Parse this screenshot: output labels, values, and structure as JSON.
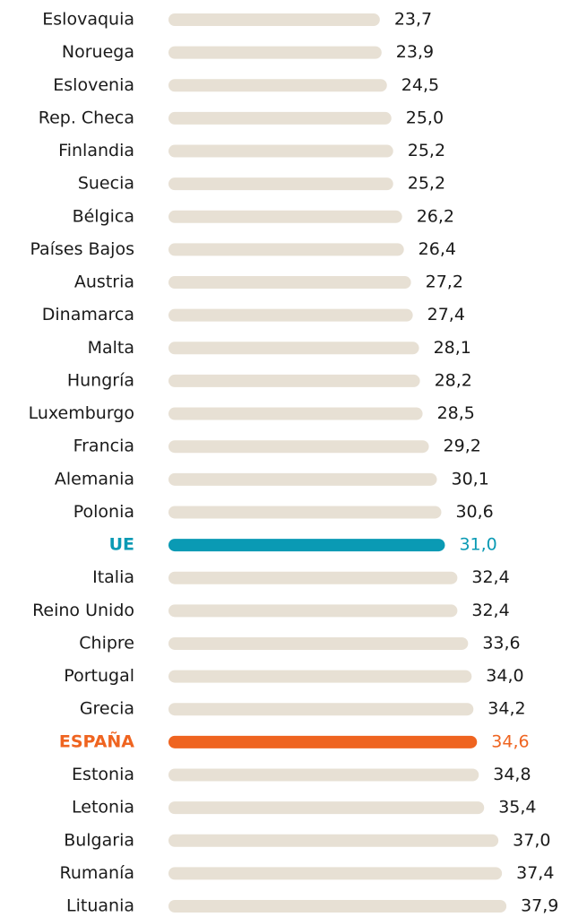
{
  "chart_data": {
    "type": "hbar",
    "categories": [
      "Eslovaquia",
      "Noruega",
      "Eslovenia",
      "Rep. Checa",
      "Finlandia",
      "Suecia",
      "Bélgica",
      "Países Bajos",
      "Austria",
      "Dinamarca",
      "Malta",
      "Hungría",
      "Luxemburgo",
      "Francia",
      "Alemania",
      "Polonia",
      "UE",
      "Italia",
      "Reino Unido",
      "Chipre",
      "Portugal",
      "Grecia",
      "ESPAÑA",
      "Estonia",
      "Letonia",
      "Bulgaria",
      "Rumanía",
      "Lituania"
    ],
    "values": [
      23.7,
      23.9,
      24.5,
      25.0,
      25.2,
      25.2,
      26.2,
      26.4,
      27.2,
      27.4,
      28.1,
      28.2,
      28.5,
      29.2,
      30.1,
      30.6,
      31.0,
      32.4,
      32.4,
      33.6,
      34.0,
      34.2,
      34.6,
      34.8,
      35.4,
      37.0,
      37.4,
      37.9
    ],
    "value_labels": [
      "23,7",
      "23,9",
      "24,5",
      "25,0",
      "25,2",
      "25,2",
      "26,2",
      "26,4",
      "27,2",
      "27,4",
      "28,1",
      "28,2",
      "28,5",
      "29,2",
      "30,1",
      "30,6",
      "31,0",
      "32,4",
      "32,4",
      "33,6",
      "34,0",
      "34,2",
      "34,6",
      "34,8",
      "35,4",
      "37,0",
      "37,4",
      "37,9"
    ],
    "color": "#e7e0d4",
    "highlight_colors": {
      "UE": "#0a9ab4",
      "ESPAÑA": "#ef6420"
    }
  }
}
